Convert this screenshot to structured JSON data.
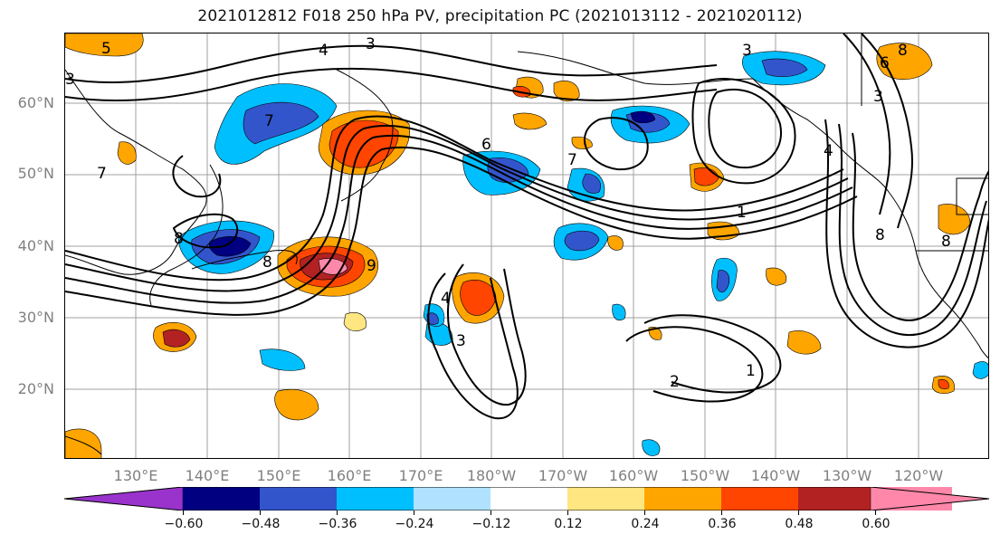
{
  "title": "2021012812 F018 250 hPa PV, precipitation PC (2021013112 - 2021020112)",
  "lat_labels": [
    "60°N",
    "50°N",
    "40°N",
    "30°N",
    "20°N"
  ],
  "lon_labels": [
    "130°E",
    "140°E",
    "150°E",
    "160°E",
    "170°E",
    "180°W",
    "170°W",
    "160°W",
    "150°W",
    "140°W",
    "130°W",
    "120°W"
  ],
  "colorbar": {
    "levels": [
      "−0.60",
      "−0.48",
      "−0.36",
      "−0.24",
      "−0.12",
      "0.12",
      "0.24",
      "0.36",
      "0.48",
      "0.60"
    ],
    "colors": [
      "#9933cc",
      "#000080",
      "#3355cc",
      "#00bfff",
      "#b0e2ff",
      "#ffffff",
      "#ffe680",
      "#ffa500",
      "#ff4500",
      "#b22222",
      "#ff88aa"
    ]
  },
  "contour_labels": [
    "4",
    "3",
    "3",
    "7",
    "5",
    "6",
    "7",
    "7",
    "8",
    "8",
    "9",
    "4",
    "3",
    "1",
    "2",
    "1",
    "3",
    "3",
    "6",
    "8",
    "4",
    "8",
    "8"
  ],
  "map_colors": {
    "contour": "#000000",
    "coast": "#000000",
    "grid": "#a0a0a0"
  }
}
